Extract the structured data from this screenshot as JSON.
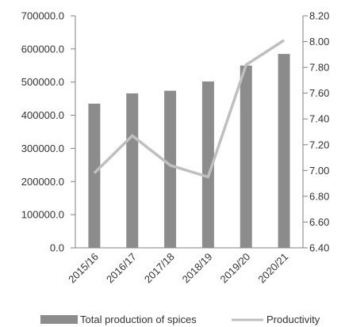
{
  "chart_data": {
    "type": "bar",
    "categories": [
      "2015/16",
      "2016/17",
      "2017/18",
      "2018/19",
      "2019/20",
      "2020/21"
    ],
    "series": [
      {
        "name": "Total production of spices",
        "type": "bar",
        "axis": "left",
        "color": "#8c8c8c",
        "values": [
          435000,
          466000,
          474000,
          502000,
          550000,
          585000
        ]
      },
      {
        "name": "Productivity",
        "type": "line",
        "axis": "right",
        "color": "#bfbfbf",
        "values": [
          6.98,
          7.27,
          7.04,
          6.95,
          7.82,
          8.01
        ]
      }
    ],
    "y_left": {
      "min": 0,
      "max": 700000,
      "ticks": [
        "0.0",
        "100000.0",
        "200000.0",
        "300000.0",
        "400000.0",
        "500000.0",
        "600000.0",
        "700000.0"
      ]
    },
    "y_right": {
      "min": 6.4,
      "max": 8.2,
      "ticks": [
        "6.40",
        "6.60",
        "6.80",
        "7.00",
        "7.20",
        "7.40",
        "7.60",
        "7.80",
        "8.00",
        "8.20"
      ]
    },
    "title": "",
    "xlabel": "",
    "grid": false,
    "legend_position": "bottom"
  }
}
